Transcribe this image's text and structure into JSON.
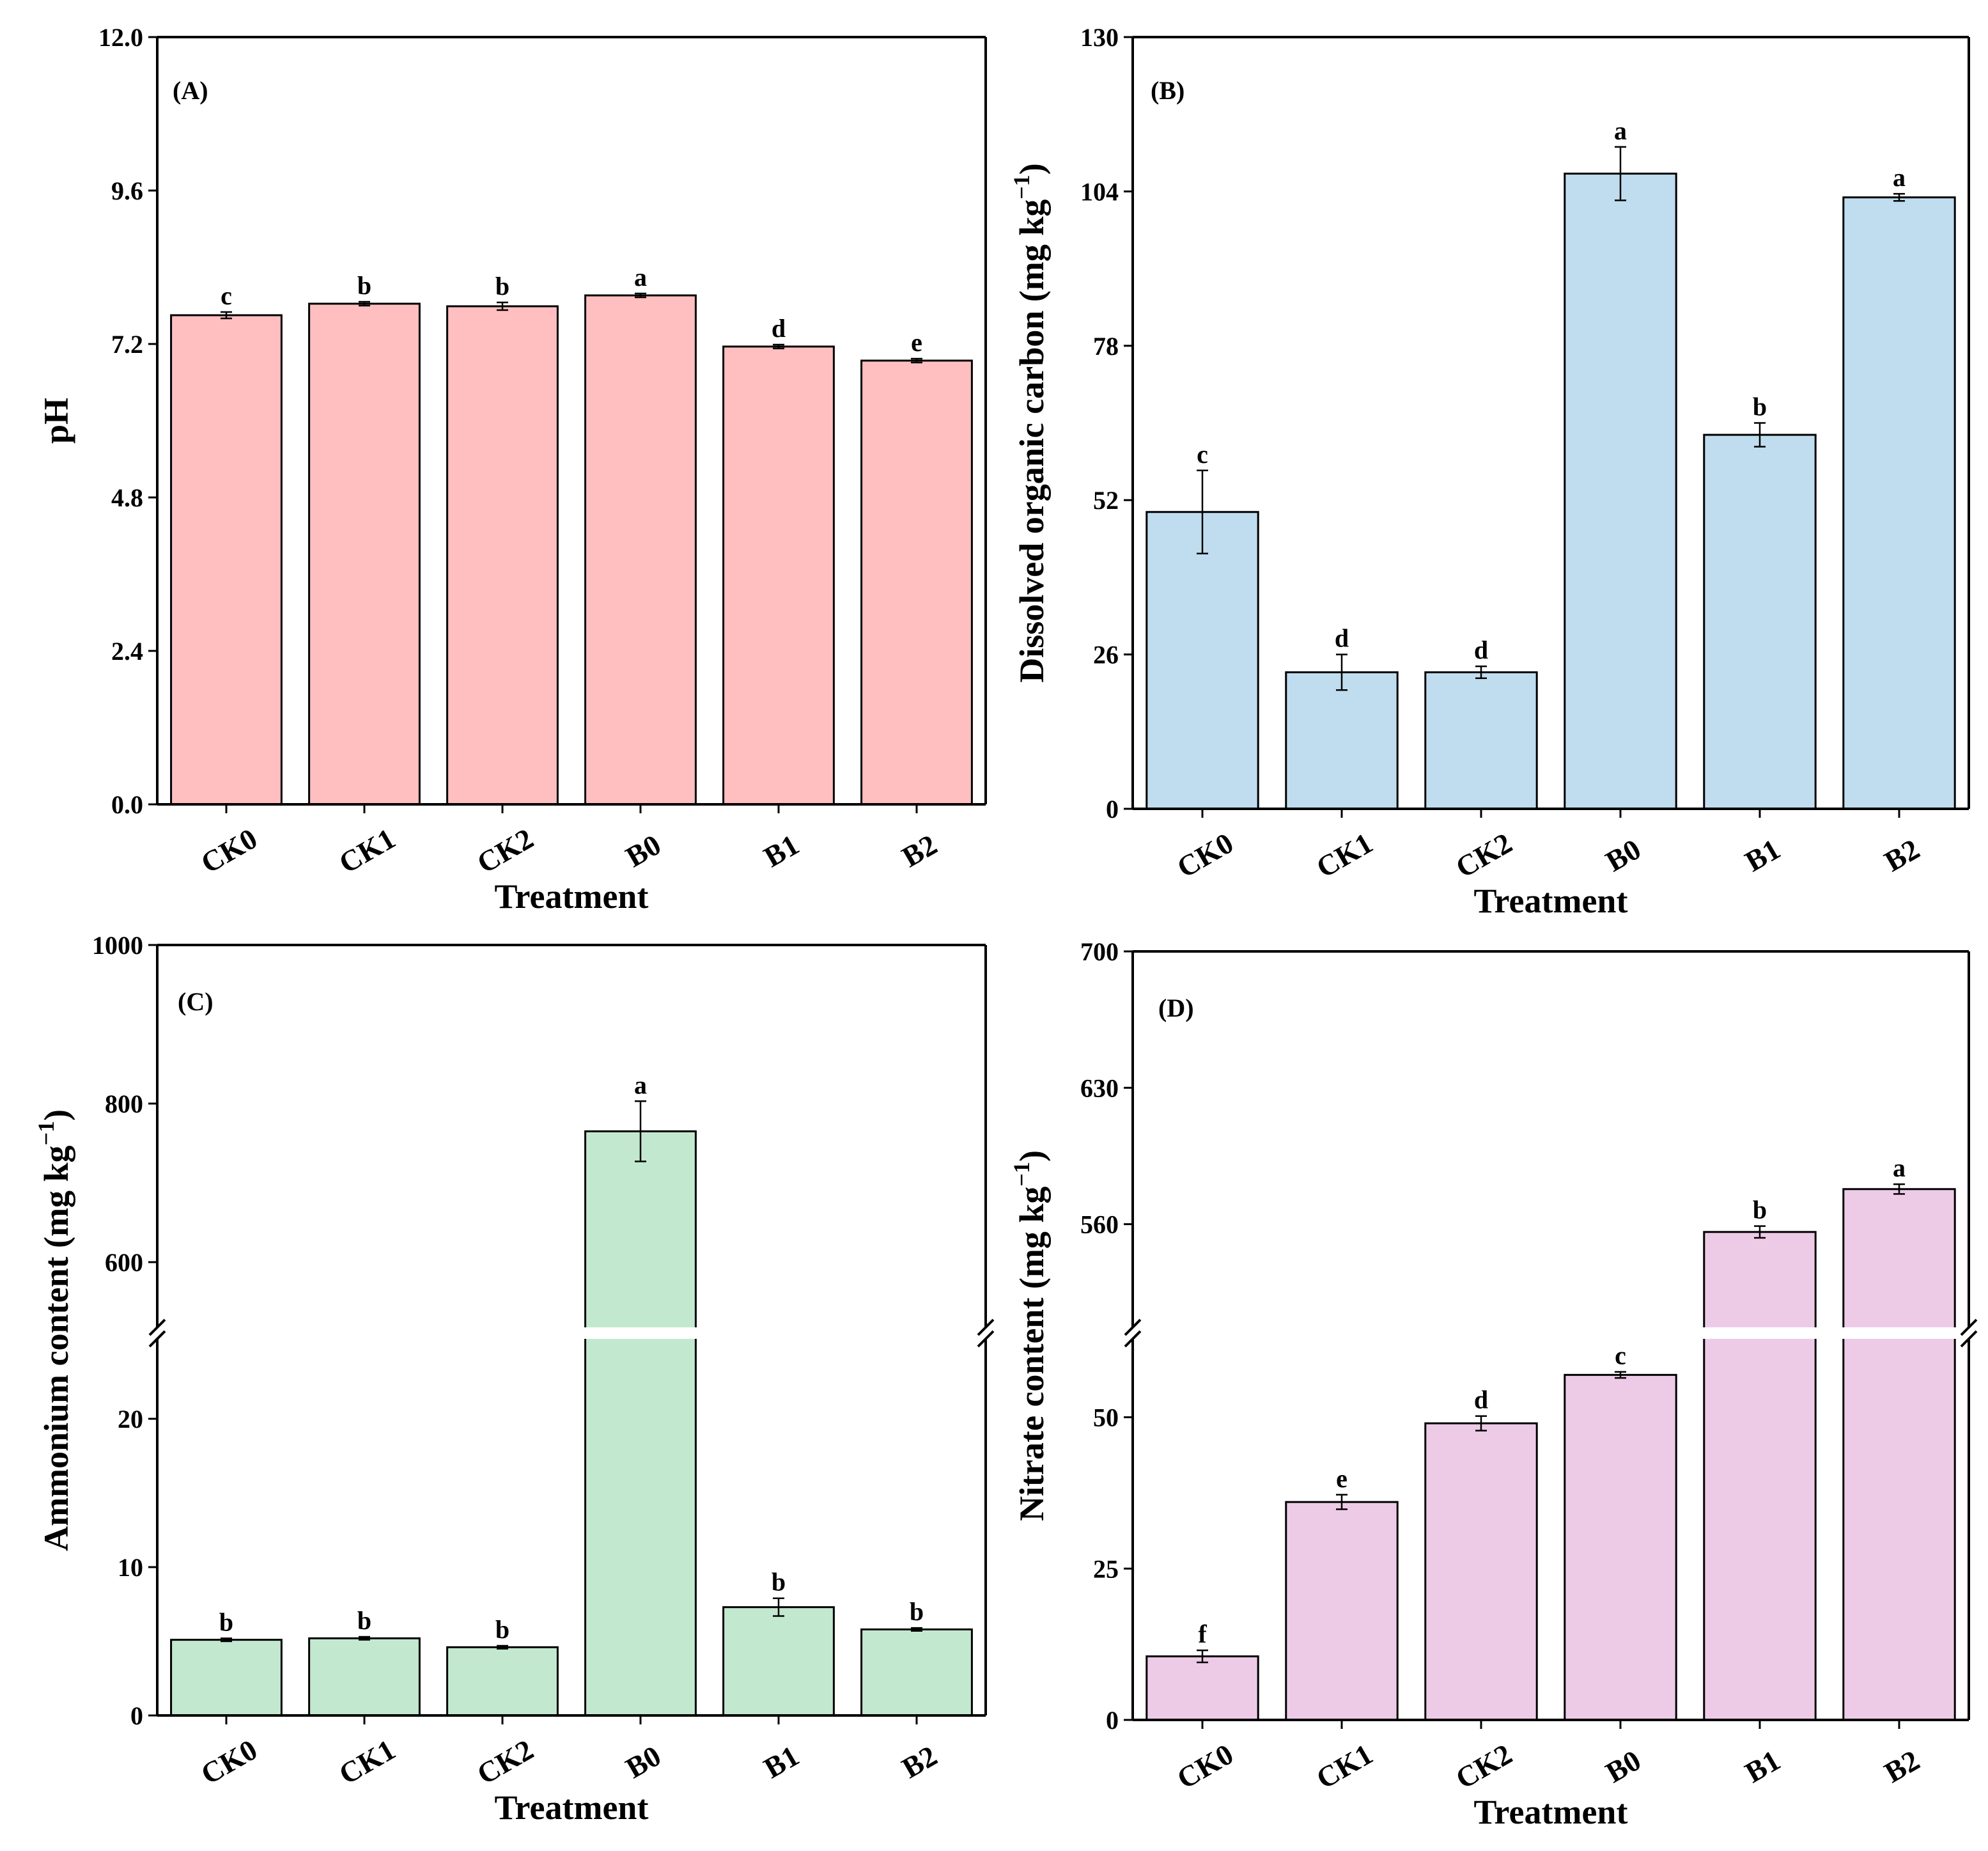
{
  "chart_data": [
    {
      "type": "bar",
      "panel_label": "(A)",
      "title": "",
      "xlabel": "Treatment",
      "ylabel": "pH",
      "categories": [
        "CK0",
        "CK1",
        "CK2",
        "B0",
        "B1",
        "B2"
      ],
      "values": [
        7.65,
        7.83,
        7.79,
        7.96,
        7.16,
        6.94
      ],
      "errors": [
        0.05,
        0.03,
        0.06,
        0.03,
        0.03,
        0.03
      ],
      "significance": [
        "c",
        "b",
        "b",
        "a",
        "d",
        "e"
      ],
      "ylim": [
        0,
        12
      ],
      "yticks": [
        "0.0",
        "2.4",
        "4.8",
        "7.2",
        "9.6",
        "12.0"
      ],
      "color": "#ffbfc0"
    },
    {
      "type": "bar",
      "panel_label": "(B)",
      "title": "",
      "xlabel": "Treatment",
      "ylabel": "Dissolved organic carbon (mg kg",
      "ylabel_sup": "−1",
      "ylabel_close": ")",
      "categories": [
        "CK0",
        "CK1",
        "CK2",
        "B0",
        "B1",
        "B2"
      ],
      "values": [
        50,
        23,
        23,
        107,
        63,
        103
      ],
      "errors": [
        7,
        3,
        1,
        4.5,
        2,
        0.6
      ],
      "significance": [
        "c",
        "d",
        "d",
        "a",
        "b",
        "a"
      ],
      "ylim": [
        0,
        130
      ],
      "yticks": [
        "0",
        "26",
        "52",
        "78",
        "104",
        "130"
      ],
      "color": "#bfddee"
    },
    {
      "type": "bar",
      "panel_label": "(C)",
      "title": "",
      "xlabel": "Treatment",
      "ylabel": "Ammonium content (mg kg",
      "ylabel_sup": "−1",
      "ylabel_close": ")",
      "categories": [
        "CK0",
        "CK1",
        "CK2",
        "B0",
        "B1",
        "B2"
      ],
      "values": [
        5.1,
        5.2,
        4.6,
        765,
        7.3,
        5.8
      ],
      "errors": [
        0.1,
        0.1,
        0.1,
        38,
        0.6,
        0.1
      ],
      "significance": [
        "b",
        "b",
        "b",
        "a",
        "b",
        "b"
      ],
      "axis_break": true,
      "ylim_lower": [
        0,
        25
      ],
      "ylim_upper": [
        525,
        1000
      ],
      "yticks_lower": [
        "0",
        "10",
        "20"
      ],
      "yticks_upper": [
        "600",
        "800",
        "1000"
      ],
      "color": "#c2e9cf"
    },
    {
      "type": "bar",
      "panel_label": "(D)",
      "title": "",
      "xlabel": "Treatment",
      "ylabel": "Nitrate content (mg kg",
      "ylabel_sup": "−1",
      "ylabel_close": ")",
      "categories": [
        "CK0",
        "CK1",
        "CK2",
        "B0",
        "B1",
        "B2"
      ],
      "values": [
        10.5,
        36,
        49,
        57,
        556,
        578
      ],
      "errors": [
        1,
        1.2,
        1.2,
        0.5,
        3,
        2.5
      ],
      "significance": [
        "f",
        "e",
        "d",
        "c",
        "b",
        "a"
      ],
      "axis_break": true,
      "ylim_lower": [
        0,
        62
      ],
      "ylim_upper": [
        510,
        700
      ],
      "yticks_lower": [
        "0",
        "25",
        "50"
      ],
      "yticks_upper": [
        "560",
        "630",
        "700"
      ],
      "color": "#edcbe7"
    }
  ]
}
